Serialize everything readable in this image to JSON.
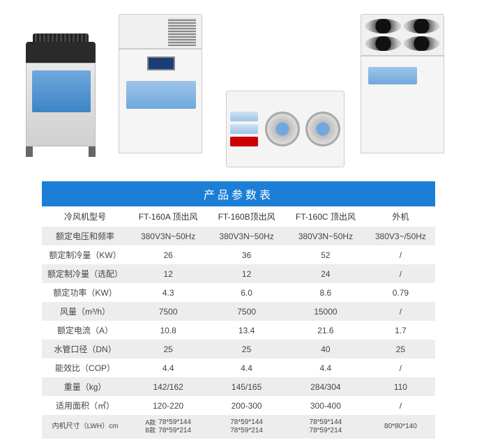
{
  "title": "产品参数表",
  "header": {
    "col0": "冷风机型号",
    "col1": "FT-160A 顶出风",
    "col2": "FT-160B顶出风",
    "col3": "FT-160C 顶出风",
    "col4": "外机"
  },
  "rows": [
    {
      "label": "额定电压和频率",
      "c1": "380V3N~50Hz",
      "c2": "380V3N~50Hz",
      "c3": "380V3N~50Hz",
      "c4": "380V3~/50Hz"
    },
    {
      "label": "额定制冷量（KW）",
      "c1": "26",
      "c2": "36",
      "c3": "52",
      "c4": "/"
    },
    {
      "label": "额定制冷量（选配）",
      "c1": "12",
      "c2": "12",
      "c3": "24",
      "c4": "/"
    },
    {
      "label": "额定功率（KW）",
      "c1": "4.3",
      "c2": "6.0",
      "c3": "8.6",
      "c4": "0.79"
    },
    {
      "label": "风量（m³/h）",
      "c1": "7500",
      "c2": "7500",
      "c3": "15000",
      "c4": "/"
    },
    {
      "label": "额定电流（A）",
      "c1": "10.8",
      "c2": "13.4",
      "c3": "21.6",
      "c4": "1.7"
    },
    {
      "label": "水管口径（DN）",
      "c1": "25",
      "c2": "25",
      "c3": "40",
      "c4": "25"
    },
    {
      "label": "能效比（COP）",
      "c1": "4.4",
      "c2": "4.4",
      "c3": "4.4",
      "c4": "/"
    },
    {
      "label": "重量（kg）",
      "c1": "142/162",
      "c2": "145/165",
      "c3": "284/304",
      "c4": "110"
    },
    {
      "label": "适用面积（㎡）",
      "c1": "120-220",
      "c2": "200-300",
      "c3": "300-400",
      "c4": "/"
    }
  ],
  "lastRow": {
    "label": "内机尺寸（LWH）cm",
    "preA": "A款",
    "preB": "B款",
    "v1a": "78*59*144",
    "v1b": "78*59*214",
    "v2a": "78*59*144",
    "v2b": "78*59*214",
    "v3a": "78*59*144",
    "v3b": "78*59*214",
    "v4": "80*80*140"
  },
  "colors": {
    "titleBg": "#1c7ed6",
    "stripe": "#ededed"
  }
}
